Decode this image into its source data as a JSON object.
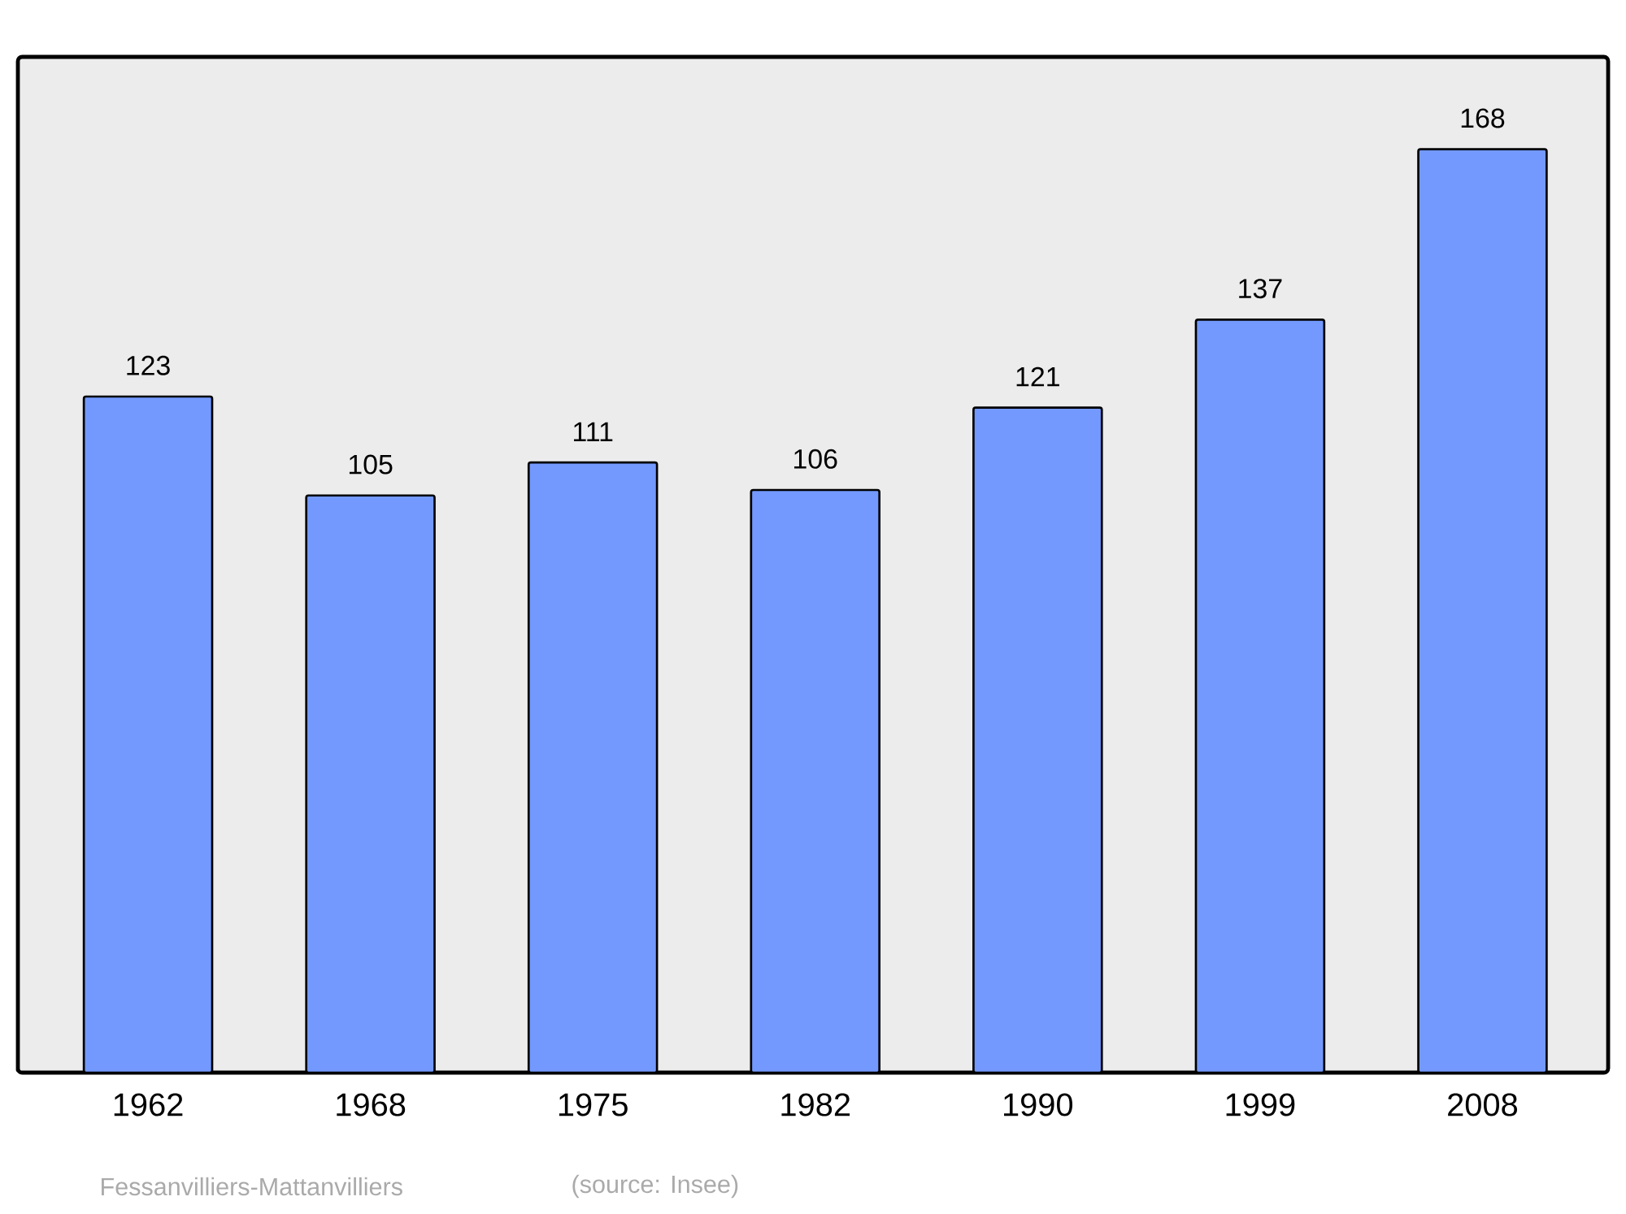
{
  "chart_data": {
    "type": "bar",
    "categories": [
      "1962",
      "1968",
      "1975",
      "1982",
      "1990",
      "1999",
      "2008"
    ],
    "values": [
      123,
      105,
      111,
      106,
      121,
      137,
      168
    ],
    "color": "#7399ff",
    "data_labels": true,
    "annotations": [
      "Fessanvilliers-Mattanvilliers",
      "(source: Insee)"
    ]
  }
}
